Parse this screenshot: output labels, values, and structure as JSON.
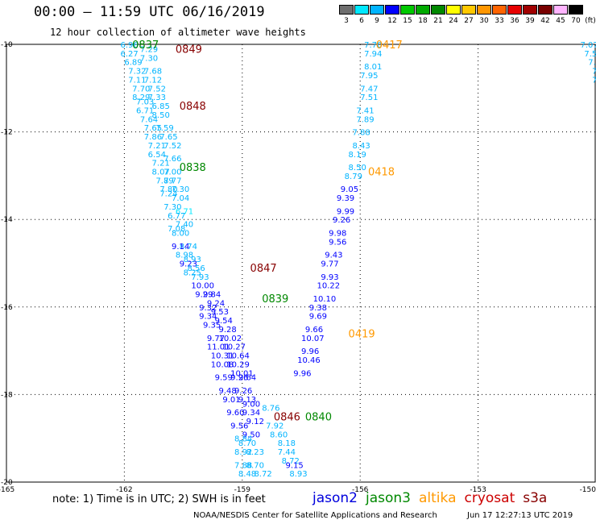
{
  "chart_data": {
    "type": "scatter",
    "title": "00:00 – 11:59 UTC 06/16/2019",
    "subtitle": "12 hour collection of altimeter wave heights",
    "xlim": [
      -165,
      -150
    ],
    "ylim": [
      -20,
      -10
    ],
    "x_ticks": [
      -165,
      -162,
      -159,
      -156,
      -153,
      -150
    ],
    "x_tick_labels": [
      "-165",
      "-162",
      "-159",
      "-156",
      "-153",
      "-150"
    ],
    "y_ticks": [
      -10,
      -12,
      -14,
      -16,
      -18,
      -20
    ],
    "y_tick_labels": [
      "-10",
      "-12",
      "-14",
      "-16",
      "-18",
      "-20"
    ],
    "colorbar": {
      "unit": "(ft)",
      "levels": [
        "3",
        "6",
        "9",
        "12",
        "15",
        "18",
        "21",
        "24",
        "27",
        "30",
        "33",
        "36",
        "39",
        "42",
        "45",
        "70"
      ],
      "colors": [
        "#6e6e6e",
        "#00e8ff",
        "#00b4ff",
        "#0000ff",
        "#00c800",
        "#00aa00",
        "#008800",
        "#ffff00",
        "#ffc800",
        "#ff9600",
        "#ff6400",
        "#e60000",
        "#a00000",
        "#780000",
        "#ffb4ff",
        "#000000"
      ]
    },
    "series": [
      {
        "name": "jason2",
        "color": "#0000dd"
      },
      {
        "name": "jason3",
        "color": "#008800"
      },
      {
        "name": "altika",
        "color": "#ff9900"
      },
      {
        "name": "cryosat",
        "color": "#cc0000"
      },
      {
        "name": "s3a",
        "color": "#880000"
      }
    ],
    "track_times": [
      {
        "label": "0837",
        "x": -161.8,
        "y": -10.0,
        "color": "#008800"
      },
      {
        "label": "0849",
        "x": -160.7,
        "y": -10.1,
        "color": "#880000"
      },
      {
        "label": "0848",
        "x": -160.6,
        "y": -11.4,
        "color": "#880000"
      },
      {
        "label": "0838",
        "x": -160.6,
        "y": -12.8,
        "color": "#008800"
      },
      {
        "label": "0847",
        "x": -158.8,
        "y": -15.1,
        "color": "#880000"
      },
      {
        "label": "0839",
        "x": -158.5,
        "y": -15.8,
        "color": "#008800"
      },
      {
        "label": "0846",
        "x": -158.2,
        "y": -18.5,
        "color": "#880000"
      },
      {
        "label": "0840",
        "x": -157.4,
        "y": -18.5,
        "color": "#008800"
      },
      {
        "label": "0417",
        "x": -155.6,
        "y": -10.0,
        "color": "#ff9900"
      },
      {
        "label": "0418",
        "x": -155.8,
        "y": -12.9,
        "color": "#ff9900"
      },
      {
        "label": "0419",
        "x": -156.3,
        "y": -16.6,
        "color": "#ff9900"
      }
    ],
    "points": [
      {
        "t": "6.96",
        "x": -162.1,
        "y": -10.0,
        "c": "#00b4ff"
      },
      {
        "t": "7.29",
        "x": -161.6,
        "y": -10.1,
        "c": "#00b4ff"
      },
      {
        "t": "6.27",
        "x": -162.1,
        "y": -10.2,
        "c": "#00b4ff"
      },
      {
        "t": "7.30",
        "x": -161.6,
        "y": -10.3,
        "c": "#00b4ff"
      },
      {
        "t": "6.89",
        "x": -162.0,
        "y": -10.4,
        "c": "#00b4ff"
      },
      {
        "t": "7.32",
        "x": -161.9,
        "y": -10.6,
        "c": "#00b4ff"
      },
      {
        "t": "7.68",
        "x": -161.5,
        "y": -10.6,
        "c": "#00b4ff"
      },
      {
        "t": "7.11",
        "x": -161.9,
        "y": -10.8,
        "c": "#00b4ff"
      },
      {
        "t": "7.12",
        "x": -161.5,
        "y": -10.8,
        "c": "#00b4ff"
      },
      {
        "t": "7.70",
        "x": -161.8,
        "y": -11.0,
        "c": "#00b4ff"
      },
      {
        "t": "7.52",
        "x": -161.4,
        "y": -11.0,
        "c": "#00b4ff"
      },
      {
        "t": "8.29",
        "x": -161.8,
        "y": -11.2,
        "c": "#00b4ff"
      },
      {
        "t": "7.33",
        "x": -161.4,
        "y": -11.2,
        "c": "#00b4ff"
      },
      {
        "t": "7.03",
        "x": -161.7,
        "y": -11.3,
        "c": "#00b4ff"
      },
      {
        "t": "6.85",
        "x": -161.3,
        "y": -11.4,
        "c": "#00b4ff"
      },
      {
        "t": "6.71",
        "x": -161.7,
        "y": -11.5,
        "c": "#00b4ff"
      },
      {
        "t": "8.50",
        "x": -161.3,
        "y": -11.6,
        "c": "#00b4ff"
      },
      {
        "t": "7.64",
        "x": -161.6,
        "y": -11.7,
        "c": "#00b4ff"
      },
      {
        "t": "7.65",
        "x": -161.5,
        "y": -11.9,
        "c": "#00b4ff"
      },
      {
        "t": "7.59",
        "x": -161.2,
        "y": -11.9,
        "c": "#00b4ff"
      },
      {
        "t": "7.86",
        "x": -161.5,
        "y": -12.1,
        "c": "#00b4ff"
      },
      {
        "t": "7.65",
        "x": -161.1,
        "y": -12.1,
        "c": "#00b4ff"
      },
      {
        "t": "7.21",
        "x": -161.4,
        "y": -12.3,
        "c": "#00b4ff"
      },
      {
        "t": "7.52",
        "x": -161.0,
        "y": -12.3,
        "c": "#00b4ff"
      },
      {
        "t": "6.54",
        "x": -161.4,
        "y": -12.5,
        "c": "#00b4ff"
      },
      {
        "t": "7.21",
        "x": -161.3,
        "y": -12.7,
        "c": "#00b4ff"
      },
      {
        "t": "7.66",
        "x": -161.0,
        "y": -12.6,
        "c": "#00b4ff"
      },
      {
        "t": "8.07",
        "x": -161.3,
        "y": -12.9,
        "c": "#00b4ff"
      },
      {
        "t": "7.00",
        "x": -161.0,
        "y": -12.9,
        "c": "#00b4ff"
      },
      {
        "t": "7.89",
        "x": -161.2,
        "y": -13.1,
        "c": "#00b4ff"
      },
      {
        "t": "7.77",
        "x": -161.0,
        "y": -13.1,
        "c": "#00b4ff"
      },
      {
        "t": "7.80",
        "x": -161.1,
        "y": -13.3,
        "c": "#00b4ff"
      },
      {
        "t": "7.30",
        "x": -160.8,
        "y": -13.3,
        "c": "#00b4ff"
      },
      {
        "t": "7.24",
        "x": -161.1,
        "y": -13.4,
        "c": "#00b4ff"
      },
      {
        "t": "7.04",
        "x": -160.8,
        "y": -13.5,
        "c": "#00b4ff"
      },
      {
        "t": "7.30",
        "x": -161.0,
        "y": -13.7,
        "c": "#00b4ff"
      },
      {
        "t": "6.71",
        "x": -160.7,
        "y": -13.8,
        "c": "#00e8ff"
      },
      {
        "t": "6.77",
        "x": -160.9,
        "y": -13.9,
        "c": "#00b4ff"
      },
      {
        "t": "7.40",
        "x": -160.7,
        "y": -14.1,
        "c": "#00b4ff"
      },
      {
        "t": "7.08",
        "x": -160.9,
        "y": -14.2,
        "c": "#00b4ff"
      },
      {
        "t": "8.00",
        "x": -160.8,
        "y": -14.3,
        "c": "#00b4ff"
      },
      {
        "t": "8.74",
        "x": -160.6,
        "y": -14.6,
        "c": "#00b4ff"
      },
      {
        "t": "9.14",
        "x": -160.8,
        "y": -14.6,
        "c": "#0000ff"
      },
      {
        "t": "8.98",
        "x": -160.7,
        "y": -14.8,
        "c": "#00b4ff"
      },
      {
        "t": "8.93",
        "x": -160.5,
        "y": -14.9,
        "c": "#00b4ff"
      },
      {
        "t": "9.23",
        "x": -160.6,
        "y": -15.0,
        "c": "#0000ff"
      },
      {
        "t": "8.56",
        "x": -160.4,
        "y": -15.1,
        "c": "#00b4ff"
      },
      {
        "t": "8.25",
        "x": -160.5,
        "y": -15.2,
        "c": "#00b4ff"
      },
      {
        "t": "7.93",
        "x": -160.3,
        "y": -15.3,
        "c": "#00b4ff"
      },
      {
        "t": "10.00",
        "x": -160.3,
        "y": -15.5,
        "c": "#0000ff"
      },
      {
        "t": "9.29",
        "x": -160.2,
        "y": -15.7,
        "c": "#0000ff"
      },
      {
        "t": "9.84",
        "x": -160.0,
        "y": -15.7,
        "c": "#0000ff"
      },
      {
        "t": "9.24",
        "x": -159.9,
        "y": -15.9,
        "c": "#0000ff"
      },
      {
        "t": "9.32",
        "x": -160.1,
        "y": -16.0,
        "c": "#0000ff"
      },
      {
        "t": "9.53",
        "x": -159.8,
        "y": -16.1,
        "c": "#0000ff"
      },
      {
        "t": "9.34",
        "x": -160.1,
        "y": -16.2,
        "c": "#0000ff"
      },
      {
        "t": "9.54",
        "x": -159.7,
        "y": -16.3,
        "c": "#0000ff"
      },
      {
        "t": "9.35",
        "x": -160.0,
        "y": -16.4,
        "c": "#0000ff"
      },
      {
        "t": "9.28",
        "x": -159.6,
        "y": -16.5,
        "c": "#0000ff"
      },
      {
        "t": "9.77",
        "x": -159.9,
        "y": -16.7,
        "c": "#0000ff"
      },
      {
        "t": "10.02",
        "x": -159.6,
        "y": -16.7,
        "c": "#0000ff"
      },
      {
        "t": "11.01",
        "x": -159.9,
        "y": -16.9,
        "c": "#0000ff"
      },
      {
        "t": "10.27",
        "x": -159.5,
        "y": -16.9,
        "c": "#0000ff"
      },
      {
        "t": "10.31",
        "x": -159.8,
        "y": -17.1,
        "c": "#0000ff"
      },
      {
        "t": "10.64",
        "x": -159.4,
        "y": -17.1,
        "c": "#0000ff"
      },
      {
        "t": "10.29",
        "x": -159.4,
        "y": -17.3,
        "c": "#0000ff"
      },
      {
        "t": "10.08",
        "x": -159.8,
        "y": -17.3,
        "c": "#0000ff"
      },
      {
        "t": "10.01",
        "x": -159.3,
        "y": -17.5,
        "c": "#0000ff"
      },
      {
        "t": "9.59",
        "x": -159.7,
        "y": -17.6,
        "c": "#0000ff"
      },
      {
        "t": "9.26",
        "x": -159.3,
        "y": -17.6,
        "c": "#0000ff"
      },
      {
        "t": "9.64",
        "x": -159.1,
        "y": -17.6,
        "c": "#0000ff"
      },
      {
        "t": "9.48",
        "x": -159.6,
        "y": -17.9,
        "c": "#0000ff"
      },
      {
        "t": "9.26",
        "x": -159.2,
        "y": -17.9,
        "c": "#0000ff"
      },
      {
        "t": "9.01",
        "x": -159.5,
        "y": -18.1,
        "c": "#0000ff"
      },
      {
        "t": "9.13",
        "x": -159.1,
        "y": -18.1,
        "c": "#0000ff"
      },
      {
        "t": "9.00",
        "x": -159.0,
        "y": -18.2,
        "c": "#0000ff"
      },
      {
        "t": "9.60",
        "x": -159.4,
        "y": -18.4,
        "c": "#0000ff"
      },
      {
        "t": "9.34",
        "x": -159.0,
        "y": -18.4,
        "c": "#0000ff"
      },
      {
        "t": "8.76",
        "x": -158.5,
        "y": -18.3,
        "c": "#00b4ff"
      },
      {
        "t": "9.12",
        "x": -158.9,
        "y": -18.6,
        "c": "#0000ff"
      },
      {
        "t": "9.56",
        "x": -159.3,
        "y": -18.7,
        "c": "#0000ff"
      },
      {
        "t": "7.92",
        "x": -158.4,
        "y": -18.7,
        "c": "#00b4ff"
      },
      {
        "t": "9.50",
        "x": -159.0,
        "y": -18.9,
        "c": "#0000ff"
      },
      {
        "t": "8.60",
        "x": -158.3,
        "y": -18.9,
        "c": "#00b4ff"
      },
      {
        "t": "8.84",
        "x": -159.2,
        "y": -19.0,
        "c": "#00b4ff"
      },
      {
        "t": "8.70",
        "x": -159.1,
        "y": -19.1,
        "c": "#00b4ff"
      },
      {
        "t": "8.18",
        "x": -158.1,
        "y": -19.1,
        "c": "#00b4ff"
      },
      {
        "t": "8.92",
        "x": -159.2,
        "y": -19.3,
        "c": "#00b4ff"
      },
      {
        "t": "8.23",
        "x": -158.9,
        "y": -19.3,
        "c": "#00b4ff"
      },
      {
        "t": "7.44",
        "x": -158.1,
        "y": -19.3,
        "c": "#00b4ff"
      },
      {
        "t": "8.72",
        "x": -158.0,
        "y": -19.5,
        "c": "#00b4ff"
      },
      {
        "t": "7.88",
        "x": -159.2,
        "y": -19.6,
        "c": "#00b4ff"
      },
      {
        "t": "8.70",
        "x": -158.9,
        "y": -19.6,
        "c": "#00b4ff"
      },
      {
        "t": "9.15",
        "x": -157.9,
        "y": -19.6,
        "c": "#0000ff"
      },
      {
        "t": "8.48",
        "x": -159.1,
        "y": -19.8,
        "c": "#00b4ff"
      },
      {
        "t": "8.72",
        "x": -158.7,
        "y": -19.8,
        "c": "#00b4ff"
      },
      {
        "t": "8.93",
        "x": -157.8,
        "y": -19.8,
        "c": "#00b4ff"
      },
      {
        "t": "7.70",
        "x": -155.9,
        "y": -10.0,
        "c": "#00b4ff"
      },
      {
        "t": "7.94",
        "x": -155.9,
        "y": -10.2,
        "c": "#00b4ff"
      },
      {
        "t": "8.01",
        "x": -155.9,
        "y": -10.5,
        "c": "#00b4ff"
      },
      {
        "t": "7.95",
        "x": -156.0,
        "y": -10.7,
        "c": "#00b4ff"
      },
      {
        "t": "7.47",
        "x": -156.0,
        "y": -11.0,
        "c": "#00b4ff"
      },
      {
        "t": "7.51",
        "x": -156.0,
        "y": -11.2,
        "c": "#00b4ff"
      },
      {
        "t": "7.41",
        "x": -156.1,
        "y": -11.5,
        "c": "#00b4ff"
      },
      {
        "t": "7.89",
        "x": -156.1,
        "y": -11.7,
        "c": "#00b4ff"
      },
      {
        "t": "7.88",
        "x": -156.2,
        "y": -12.0,
        "c": "#00b4ff"
      },
      {
        "t": "8.43",
        "x": -156.2,
        "y": -12.3,
        "c": "#00b4ff"
      },
      {
        "t": "8.19",
        "x": -156.3,
        "y": -12.5,
        "c": "#00b4ff"
      },
      {
        "t": "8.50",
        "x": -156.3,
        "y": -12.8,
        "c": "#00b4ff"
      },
      {
        "t": "8.79",
        "x": -156.4,
        "y": -13.0,
        "c": "#00b4ff"
      },
      {
        "t": "9.05",
        "x": -156.5,
        "y": -13.3,
        "c": "#0000ff"
      },
      {
        "t": "9.39",
        "x": -156.6,
        "y": -13.5,
        "c": "#0000ff"
      },
      {
        "t": "9.99",
        "x": -156.6,
        "y": -13.8,
        "c": "#0000ff"
      },
      {
        "t": "9.26",
        "x": -156.7,
        "y": -14.0,
        "c": "#0000ff"
      },
      {
        "t": "9.98",
        "x": -156.8,
        "y": -14.3,
        "c": "#0000ff"
      },
      {
        "t": "9.56",
        "x": -156.8,
        "y": -14.5,
        "c": "#0000ff"
      },
      {
        "t": "9.43",
        "x": -156.9,
        "y": -14.8,
        "c": "#0000ff"
      },
      {
        "t": "9.77",
        "x": -157.0,
        "y": -15.0,
        "c": "#0000ff"
      },
      {
        "t": "9.93",
        "x": -157.0,
        "y": -15.3,
        "c": "#0000ff"
      },
      {
        "t": "10.22",
        "x": -157.1,
        "y": -15.5,
        "c": "#0000ff"
      },
      {
        "t": "10.10",
        "x": -157.2,
        "y": -15.8,
        "c": "#0000ff"
      },
      {
        "t": "9.38",
        "x": -157.3,
        "y": -16.0,
        "c": "#0000ff"
      },
      {
        "t": "9.69",
        "x": -157.3,
        "y": -16.2,
        "c": "#0000ff"
      },
      {
        "t": "9.66",
        "x": -157.4,
        "y": -16.5,
        "c": "#0000ff"
      },
      {
        "t": "10.07",
        "x": -157.5,
        "y": -16.7,
        "c": "#0000ff"
      },
      {
        "t": "9.96",
        "x": -157.5,
        "y": -17.0,
        "c": "#0000ff"
      },
      {
        "t": "10.46",
        "x": -157.6,
        "y": -17.2,
        "c": "#0000ff"
      },
      {
        "t": "9.96",
        "x": -157.7,
        "y": -17.5,
        "c": "#0000ff"
      },
      {
        "t": "7.07",
        "x": -150.4,
        "y": -10.0,
        "c": "#00b4ff"
      },
      {
        "t": "7.56",
        "x": -150.3,
        "y": -10.2,
        "c": "#00b4ff"
      },
      {
        "t": "7.75",
        "x": -150.2,
        "y": -10.4,
        "c": "#00b4ff"
      },
      {
        "t": "7.8",
        "x": -150.1,
        "y": -10.6,
        "c": "#00b4ff"
      },
      {
        "t": "7.6",
        "x": -150.1,
        "y": -10.8,
        "c": "#00b4ff"
      },
      {
        "t": "7.",
        "x": -150.0,
        "y": -11.1,
        "c": "#00b4ff"
      },
      {
        "t": "7",
        "x": -150.0,
        "y": -11.3,
        "c": "#00b4ff"
      }
    ]
  },
  "note": "note: 1) Time is in UTC; 2) SWH is in feet",
  "credit": "NOAA/NESDIS Center for Satellite Applications and Research",
  "timestamp": "Jun 17 12:27:13 UTC 2019"
}
